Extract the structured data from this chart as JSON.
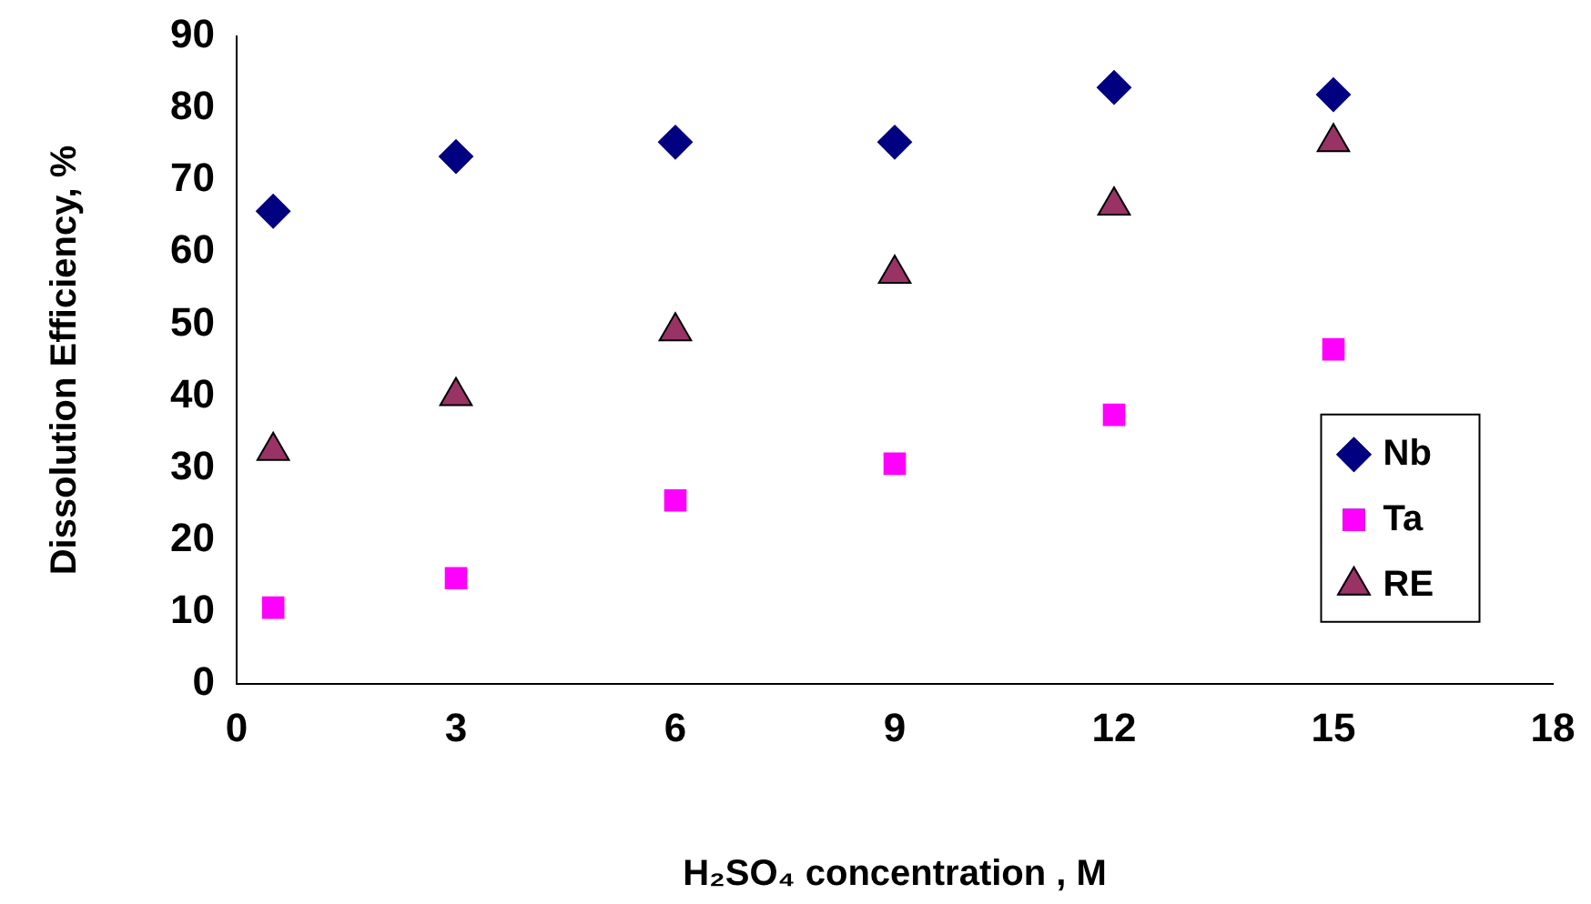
{
  "chart_data": {
    "type": "scatter",
    "xlabel": "H₂SO₄ concentration , M",
    "ylabel": "Dissolution Efficiency, %",
    "x": [
      0.5,
      3,
      6,
      9,
      12,
      15
    ],
    "series": [
      {
        "name": "Nb",
        "color": "#000080",
        "marker": "diamond",
        "values": [
          65.7,
          73.3,
          75.3,
          75.3,
          82.9,
          81.9
        ]
      },
      {
        "name": "Ta",
        "color": "#ff00ff",
        "marker": "square",
        "values": [
          10.6,
          14.7,
          25.5,
          30.6,
          37.4,
          46.5
        ]
      },
      {
        "name": "RE",
        "color": "#993366",
        "marker": "triangle",
        "values": [
          32.4,
          40,
          49,
          57,
          66.5,
          75.3
        ]
      }
    ],
    "xlim": [
      0,
      18
    ],
    "xticks": [
      0,
      3,
      6,
      9,
      12,
      15,
      18
    ],
    "ylim": [
      0,
      90
    ],
    "yticks": [
      0,
      10,
      20,
      30,
      40,
      50,
      60,
      70,
      80,
      90
    ],
    "grid": false,
    "legend": "right"
  }
}
